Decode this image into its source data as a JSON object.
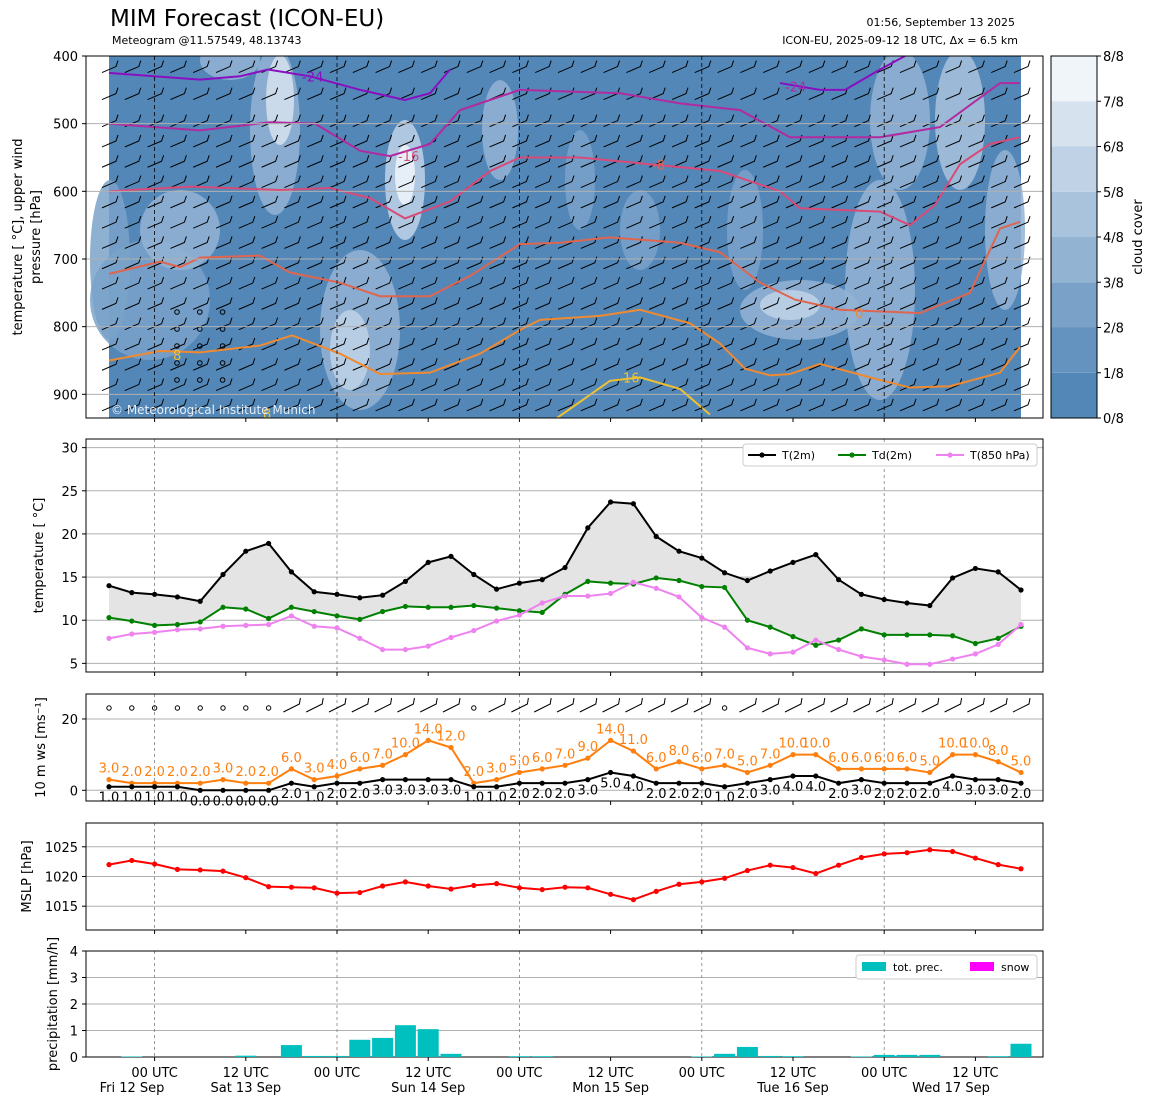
{
  "header": {
    "title": "MIM Forecast (ICON-EU)",
    "subtitle": "Meteogram @11.57549, 48.13743",
    "datetime": "01:56, September 13 2025",
    "model_line": "ICON-EU, 2025-09-12 18 UTC, Δx = 6.5 km"
  },
  "copyright": "© Meteorological Institute Munich",
  "time_axis": {
    "ticks": [
      "00 UTC",
      "12 UTC",
      "00 UTC",
      "12 UTC",
      "00 UTC",
      "12 UTC",
      "00 UTC",
      "12 UTC",
      "00 UTC",
      "12 UTC"
    ],
    "dates": [
      "Fri 12 Sep",
      "Sat 13 Sep",
      "Sun 14 Sep",
      "Mon 15 Sep",
      "Tue 16 Sep",
      "Wed 17 Sep"
    ]
  },
  "colors": {
    "t2m": "#000000",
    "td2m": "#008000",
    "t850": "#ee82ee",
    "wind10": "#ff7f0e",
    "wind_mean": "#000000",
    "mslp": "#ff0000",
    "precip": "#00bfbf",
    "snow": "#ff00ff",
    "cloud_scale": [
      "#5287b8",
      "#6593c0",
      "#7aa2c9",
      "#93b3d3",
      "#a9c3dc",
      "#bfd2e6",
      "#d6e2ee",
      "#f0f5fa"
    ]
  },
  "chart_data": [
    {
      "type": "heatmap",
      "name": "upper-air",
      "ylabel": "temperature [$^\\circ$C], upper wind\npressure [hPa]",
      "ylim": [
        935,
        400
      ],
      "yticks": [
        400,
        500,
        600,
        700,
        800,
        900
      ],
      "colorbar": {
        "label": "cloud cover",
        "ticks": [
          "0/8",
          "1/8",
          "2/8",
          "3/8",
          "4/8",
          "5/8",
          "6/8",
          "7/8",
          "8/8"
        ]
      },
      "isotherm_labels": [
        "-24",
        "-24",
        "-16",
        "-8",
        "0",
        "8",
        "16",
        "8"
      ],
      "isotherm_colors": [
        "#8a0fc0",
        "#b22aa0",
        "#d94a78",
        "#e0654f",
        "#f08a30",
        "#f0c030"
      ],
      "grid": true
    },
    {
      "type": "line",
      "name": "temperature",
      "ylabel": "temperature [$^\\circ$C]",
      "ylim": [
        4,
        31
      ],
      "yticks": [
        5,
        10,
        15,
        20,
        25,
        30
      ],
      "grid": true,
      "legend": "top-right",
      "series": [
        {
          "name": "T(2m)",
          "values": [
            14.0,
            13.2,
            13.0,
            12.7,
            12.2,
            15.3,
            18.0,
            18.9,
            15.6,
            13.3,
            13.0,
            12.6,
            12.9,
            14.5,
            16.7,
            17.4,
            15.3,
            13.6,
            14.3,
            14.7,
            16.1,
            20.7,
            23.7,
            23.5,
            19.7,
            18.0,
            17.2,
            15.5,
            14.6,
            15.7,
            16.7,
            17.6,
            14.7,
            13.0,
            12.4,
            12.0,
            11.7,
            14.9,
            16.0,
            15.6,
            13.5
          ]
        },
        {
          "name": "Td(2m)",
          "values": [
            10.3,
            9.9,
            9.4,
            9.5,
            9.8,
            11.5,
            11.3,
            10.2,
            11.5,
            11.0,
            10.5,
            10.1,
            11.0,
            11.6,
            11.5,
            11.5,
            11.7,
            11.4,
            11.1,
            10.9,
            13.0,
            14.5,
            14.3,
            14.2,
            14.9,
            14.6,
            13.9,
            13.8,
            10.0,
            9.2,
            8.1,
            7.1,
            7.7,
            9.0,
            8.3,
            8.3,
            8.3,
            8.2,
            7.3,
            7.9,
            9.3
          ]
        },
        {
          "name": "T(850 hPa)",
          "values": [
            7.9,
            8.4,
            8.6,
            8.9,
            9.0,
            9.3,
            9.4,
            9.5,
            10.5,
            9.3,
            9.1,
            7.9,
            6.6,
            6.6,
            7.0,
            8.0,
            8.8,
            9.9,
            10.6,
            12.0,
            12.8,
            12.8,
            13.1,
            14.4,
            13.7,
            12.7,
            10.3,
            9.2,
            6.8,
            6.1,
            6.3,
            7.7,
            6.6,
            5.8,
            5.4,
            4.9,
            4.9,
            5.5,
            6.1,
            7.2,
            9.5
          ]
        }
      ],
      "fill_between": [
        "T(2m)",
        "Td(2m)"
      ]
    },
    {
      "type": "line",
      "name": "wind",
      "ylabel": "10 m ws [ms$^{-1}$]",
      "ylim": [
        -3,
        27
      ],
      "yticks": [
        0,
        20
      ],
      "grid": true,
      "series": [
        {
          "name": "",
          "values": [
            3.0,
            2.0,
            2.0,
            2.0,
            2.0,
            3.0,
            2.0,
            2.0,
            6.0,
            3.0,
            4.0,
            6.0,
            7.0,
            10.0,
            14.0,
            12.0,
            2.0,
            3.0,
            5.0,
            6.0,
            7.0,
            9.0,
            14.0,
            11.0,
            6.0,
            8.0,
            6.0,
            7.0,
            5.0,
            7.0,
            10.0,
            10.0,
            6.0,
            6.0,
            6.0,
            6.0,
            5.0,
            10.0,
            10.0,
            8.0,
            5.0
          ]
        },
        {
          "name": "",
          "values": [
            1.0,
            1.0,
            1.0,
            1.0,
            0.0,
            0.0,
            0.0,
            0.0,
            2.0,
            1.0,
            2.0,
            2.0,
            3.0,
            3.0,
            3.0,
            3.0,
            1.0,
            1.0,
            2.0,
            2.0,
            2.0,
            3.0,
            5.0,
            4.0,
            2.0,
            2.0,
            2.0,
            1.0,
            2.0,
            3.0,
            4.0,
            4.0,
            2.0,
            3.0,
            2.0,
            2.0,
            2.0,
            4.0,
            3.0,
            3.0,
            2.0
          ]
        }
      ],
      "gust_labels": [
        "3.0",
        "2.0",
        "2.0",
        "2.0",
        "2.0",
        "3.0",
        "2.0",
        "2.0",
        "6.0",
        "3.0",
        "4.0",
        "6.0",
        "7.0",
        "10.0",
        "14.0",
        "12.0",
        "2.0",
        "3.0",
        "5.0",
        "6.0",
        "7.0",
        "9.0",
        "14.0",
        "11.0",
        "6.0",
        "8.0",
        "6.0",
        "7.0",
        "5.0",
        "7.0",
        "10.0",
        "10.0",
        "6.0",
        "6.0",
        "6.0",
        "6.0",
        "5.0",
        "10.0",
        "10.0",
        "8.0",
        "5.0"
      ],
      "mean_labels": [
        "1.0",
        "1.0",
        "1.0",
        "1.0",
        "0.0",
        "0.0",
        "0.0",
        "0.0",
        "2.0",
        "1.0",
        "2.0",
        "2.0",
        "3.0",
        "3.0",
        "3.0",
        "3.0",
        "1.0",
        "1.0",
        "2.0",
        "2.0",
        "2.0",
        "3.0",
        "5.0",
        "4.0",
        "2.0",
        "2.0",
        "2.0",
        "1.0",
        "2.0",
        "3.0",
        "4.0",
        "4.0",
        "2.0",
        "3.0",
        "2.0",
        "2.0",
        "2.0",
        "4.0",
        "3.0",
        "3.0",
        "2.0"
      ]
    },
    {
      "type": "line",
      "name": "mslp",
      "ylabel": "MSLP [hPa]",
      "ylim": [
        1011,
        1029
      ],
      "yticks": [
        1015,
        1020,
        1025
      ],
      "grid": true,
      "series": [
        {
          "name": "",
          "values": [
            1022.0,
            1022.7,
            1022.1,
            1021.2,
            1021.1,
            1020.9,
            1019.8,
            1018.3,
            1018.2,
            1018.1,
            1017.2,
            1017.3,
            1018.4,
            1019.1,
            1018.4,
            1017.9,
            1018.5,
            1018.8,
            1018.1,
            1017.8,
            1018.2,
            1018.1,
            1017.0,
            1016.1,
            1017.5,
            1018.7,
            1019.1,
            1019.7,
            1021.0,
            1021.9,
            1021.5,
            1020.5,
            1021.9,
            1023.2,
            1023.8,
            1024.0,
            1024.5,
            1024.2,
            1023.1,
            1022.0,
            1021.3
          ]
        }
      ]
    },
    {
      "type": "bar",
      "name": "precipitation",
      "ylabel": "precipitation [mm/h]",
      "ylim": [
        0,
        4
      ],
      "yticks": [
        0,
        1,
        2,
        3,
        4
      ],
      "grid": true,
      "legend": "top-right",
      "series": [
        {
          "name": "tot. prec.",
          "values": [
            0,
            0.02,
            0,
            0,
            0,
            0,
            0.05,
            0,
            0.45,
            0.04,
            0.04,
            0.65,
            0.72,
            1.2,
            1.05,
            0.12,
            0,
            0,
            0.03,
            0.03,
            0,
            0,
            0,
            0,
            0,
            0,
            0.02,
            0.12,
            0.38,
            0.04,
            0.03,
            0,
            0,
            0.02,
            0.08,
            0.08,
            0.08,
            0,
            0,
            0.03,
            0.5
          ]
        },
        {
          "name": "snow",
          "values": [
            0,
            0,
            0,
            0,
            0,
            0,
            0,
            0,
            0,
            0,
            0,
            0,
            0,
            0,
            0,
            0,
            0,
            0,
            0,
            0,
            0,
            0,
            0,
            0,
            0,
            0,
            0,
            0,
            0,
            0,
            0,
            0,
            0,
            0,
            0,
            0,
            0,
            0,
            0,
            0,
            0
          ]
        }
      ]
    }
  ]
}
